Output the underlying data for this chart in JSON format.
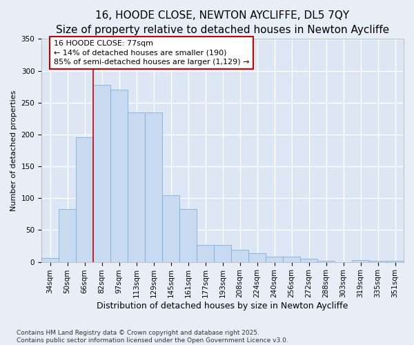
{
  "title": "16, HOODE CLOSE, NEWTON AYCLIFFE, DL5 7QY",
  "subtitle": "Size of property relative to detached houses in Newton Aycliffe",
  "xlabel": "Distribution of detached houses by size in Newton Aycliffe",
  "ylabel": "Number of detached properties",
  "categories": [
    "34sqm",
    "50sqm",
    "66sqm",
    "82sqm",
    "97sqm",
    "113sqm",
    "129sqm",
    "145sqm",
    "161sqm",
    "177sqm",
    "193sqm",
    "208sqm",
    "224sqm",
    "240sqm",
    "256sqm",
    "272sqm",
    "288sqm",
    "303sqm",
    "319sqm",
    "335sqm",
    "351sqm"
  ],
  "values": [
    6,
    83,
    196,
    278,
    270,
    235,
    235,
    105,
    83,
    27,
    27,
    19,
    14,
    8,
    8,
    5,
    2,
    0,
    3,
    2,
    2
  ],
  "bar_color": "#c8daf0",
  "bar_edge_color": "#7ab0dc",
  "vline_x": 2.5,
  "vline_color": "#cc0000",
  "annotation_text": "16 HOODE CLOSE: 77sqm\n← 14% of detached houses are smaller (190)\n85% of semi-detached houses are larger (1,129) →",
  "annotation_box_color": "#ffffff",
  "annotation_box_edge": "#cc0000",
  "bg_color": "#e8eef8",
  "plot_bg_color": "#dce6f5",
  "grid_color": "#ffffff",
  "footnote": "Contains HM Land Registry data © Crown copyright and database right 2025.\nContains public sector information licensed under the Open Government Licence v3.0.",
  "ylim": [
    0,
    350
  ],
  "yticks": [
    0,
    50,
    100,
    150,
    200,
    250,
    300,
    350
  ],
  "title_fontsize": 11,
  "subtitle_fontsize": 9,
  "xlabel_fontsize": 9,
  "ylabel_fontsize": 8,
  "tick_fontsize": 7.5,
  "annotation_fontsize": 8,
  "footnote_fontsize": 6.5
}
